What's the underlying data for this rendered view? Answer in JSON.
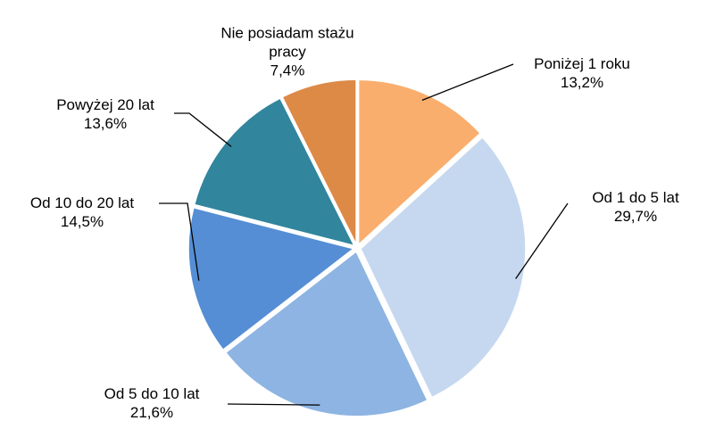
{
  "chart_data": {
    "type": "pie",
    "categories": [
      "Poniżej 1 roku",
      "Od 1 do 5 lat",
      "Od 5 do 10 lat",
      "Od 10 do 20 lat",
      "Powyżej 20 lat",
      "Nie posiadam stażu pracy"
    ],
    "values": [
      13.2,
      29.7,
      21.6,
      14.5,
      13.6,
      7.4
    ],
    "value_labels": [
      "13,2%",
      "29,7%",
      "21,6%",
      "14,5%",
      "13,6%",
      "7,4%"
    ],
    "colors": [
      "#f9ae6e",
      "#c6d8ef",
      "#8db4e2",
      "#558ed5",
      "#31859c",
      "#dd8a47"
    ]
  }
}
